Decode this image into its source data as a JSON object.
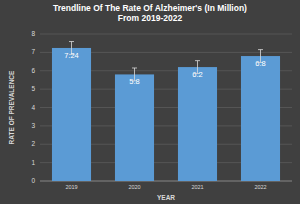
{
  "chart_data": {
    "type": "bar",
    "title": "Trendline Of The Rate Of Alzheimer's (In Million) From 2019-2022",
    "x_label": "YEAR",
    "y_label": "RATE OF PREVALENCE",
    "categories": [
      "2019",
      "2020",
      "2021",
      "2022"
    ],
    "values": [
      7.24,
      5.8,
      6.2,
      6.8
    ],
    "errors": [
      0.35,
      0.35,
      0.35,
      0.35
    ],
    "color": "#5b9bd5",
    "ylim": [
      0,
      8
    ],
    "yticks": [
      0,
      1,
      2,
      3,
      4,
      5,
      6,
      7,
      8
    ],
    "grid": true,
    "data_labels": true
  }
}
